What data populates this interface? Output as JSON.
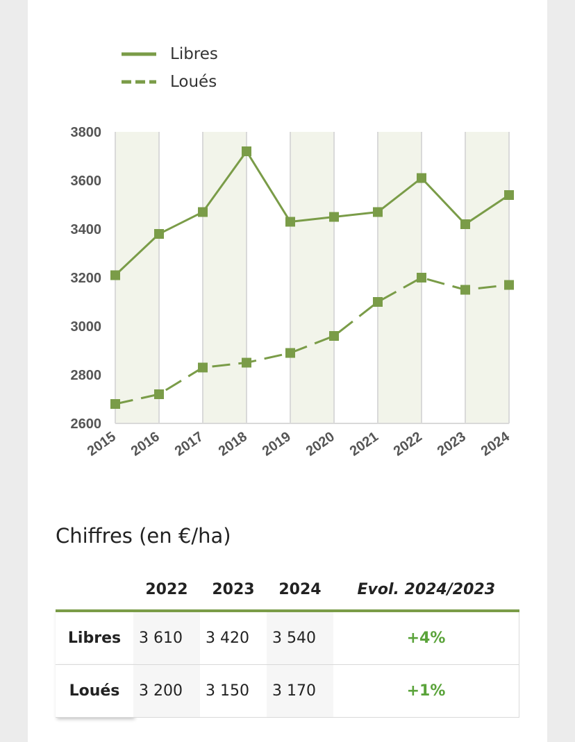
{
  "chart_data": {
    "type": "line",
    "x": [
      "2015",
      "2016",
      "2017",
      "2018",
      "2019",
      "2020",
      "2021",
      "2022",
      "2023",
      "2024"
    ],
    "series": [
      {
        "name": "Libres",
        "values": [
          3210,
          3380,
          3470,
          3720,
          3430,
          3450,
          3470,
          3610,
          3420,
          3540
        ],
        "style": "solid"
      },
      {
        "name": "Loués",
        "values": [
          2680,
          2720,
          2830,
          2850,
          2890,
          2960,
          3100,
          3200,
          3150,
          3170
        ],
        "style": "dashed"
      }
    ],
    "ylim": [
      2600,
      3800
    ],
    "yticks": [
      2600,
      2800,
      3000,
      3200,
      3400,
      3600,
      3800
    ],
    "legend_position": "top-left",
    "colors": {
      "line": "#7a9c48",
      "band": "#f2f4ea",
      "grid": "#d9d9d9"
    }
  },
  "table": {
    "title": "Chiffres (en €/ha)",
    "headers": [
      "2022",
      "2023",
      "2024",
      "Evol. 2024/2023"
    ],
    "rows": [
      {
        "label": "Libres",
        "values": [
          "3 610",
          "3 420",
          "3 540"
        ],
        "evol": "+4%"
      },
      {
        "label": "Loués",
        "values": [
          "3 200",
          "3 150",
          "3 170"
        ],
        "evol": "+1%"
      }
    ],
    "colors": {
      "accent": "#7a9c48",
      "positive": "#5aa33a"
    }
  }
}
